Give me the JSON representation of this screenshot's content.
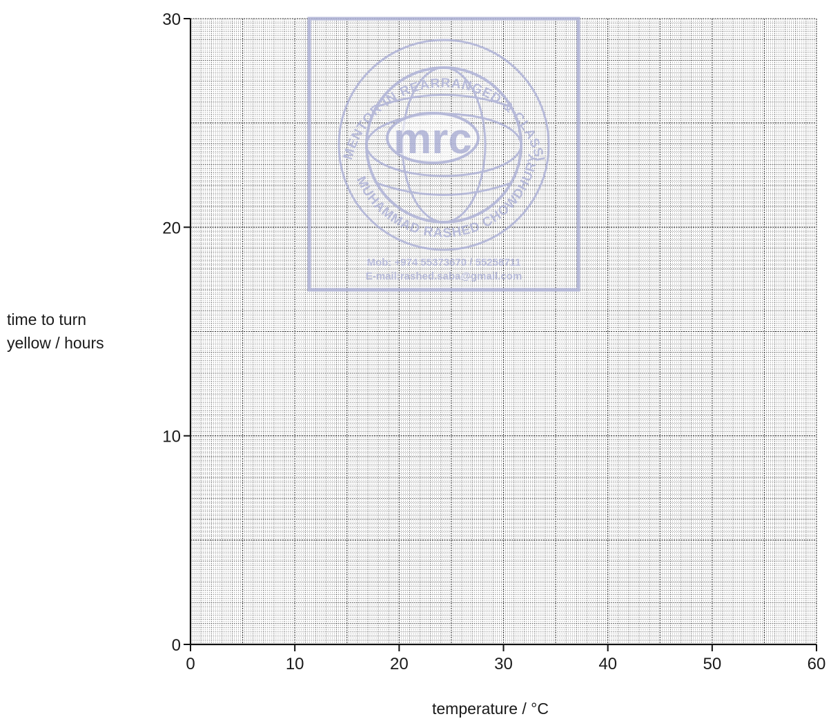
{
  "chart_data": {
    "type": "scatter",
    "xlabel": "temperature / °C",
    "ylabel_lines": [
      "time to turn",
      "yellow / hours"
    ],
    "xlim": [
      0,
      60
    ],
    "ylim": [
      0,
      30
    ],
    "x_ticks": [
      0,
      10,
      20,
      30,
      40,
      50,
      60
    ],
    "y_ticks": [
      0,
      10,
      20,
      30
    ],
    "x_minor_step": 1,
    "y_minor_step": 1,
    "grid": true,
    "series": []
  },
  "watermark": {
    "logo_text": "mrc",
    "ring_top_text": "MENTOR IN REARRANGED & CLASSIFIED",
    "ring_bottom_text": "MUHAMMAD RASHED CHOWDHURY",
    "contact_mobile": "Mob: +974 55373670 / 55258711",
    "contact_email": "E-mail:rashed.saba@gmail.com",
    "color": "#aeb2d6"
  },
  "colors": {
    "axis": "#111111",
    "grid_major": "#333333",
    "grid_minor": "#666666"
  }
}
